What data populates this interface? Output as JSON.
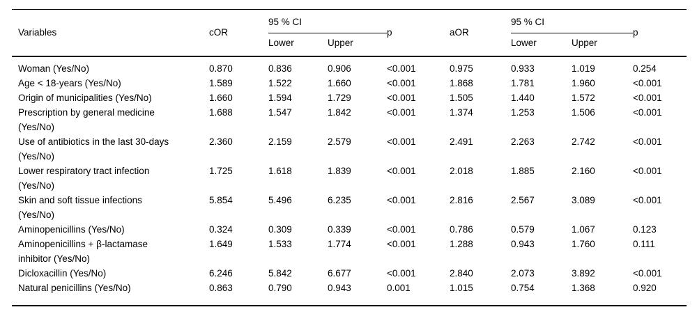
{
  "table": {
    "headers": {
      "variables": "Variables",
      "cor": "cOR",
      "ci": "95 % CI",
      "lower": "Lower",
      "upper": "Upper",
      "p": "p",
      "aor": "aOR"
    },
    "rows": [
      {
        "variable": "Woman (Yes/No)",
        "cor": "0.870",
        "ci1_lower": "0.836",
        "ci1_upper": "0.906",
        "p1": "<0.001",
        "aor": "0.975",
        "ci2_lower": "0.933",
        "ci2_upper": "1.019",
        "p2": "0.254"
      },
      {
        "variable": "Age < 18-years (Yes/No)",
        "cor": "1.589",
        "ci1_lower": "1.522",
        "ci1_upper": "1.660",
        "p1": "<0.001",
        "aor": "1.868",
        "ci2_lower": "1.781",
        "ci2_upper": "1.960",
        "p2": "<0.001"
      },
      {
        "variable": "Origin of municipalities (Yes/No)",
        "cor": "1.660",
        "ci1_lower": "1.594",
        "ci1_upper": "1.729",
        "p1": "<0.001",
        "aor": "1.505",
        "ci2_lower": "1.440",
        "ci2_upper": "1.572",
        "p2": "<0.001"
      },
      {
        "variable": "Prescription by general medicine (Yes/No)",
        "cor": "1.688",
        "ci1_lower": "1.547",
        "ci1_upper": "1.842",
        "p1": "<0.001",
        "aor": "1.374",
        "ci2_lower": "1.253",
        "ci2_upper": "1.506",
        "p2": "<0.001"
      },
      {
        "variable": "Use of antibiotics in the last 30-days (Yes/No)",
        "cor": "2.360",
        "ci1_lower": "2.159",
        "ci1_upper": "2.579",
        "p1": "<0.001",
        "aor": "2.491",
        "ci2_lower": "2.263",
        "ci2_upper": "2.742",
        "p2": "<0.001"
      },
      {
        "variable": "Lower respiratory tract infection (Yes/No)",
        "cor": "1.725",
        "ci1_lower": "1.618",
        "ci1_upper": "1.839",
        "p1": "<0.001",
        "aor": "2.018",
        "ci2_lower": "1.885",
        "ci2_upper": "2.160",
        "p2": "<0.001"
      },
      {
        "variable": "Skin and soft tissue infections (Yes/No)",
        "cor": "5.854",
        "ci1_lower": "5.496",
        "ci1_upper": "6.235",
        "p1": "<0.001",
        "aor": "2.816",
        "ci2_lower": "2.567",
        "ci2_upper": "3.089",
        "p2": "<0.001"
      },
      {
        "variable": "Aminopenicillins (Yes/No)",
        "cor": "0.324",
        "ci1_lower": "0.309",
        "ci1_upper": "0.339",
        "p1": "<0.001",
        "aor": "0.786",
        "ci2_lower": "0.579",
        "ci2_upper": "1.067",
        "p2": "0.123"
      },
      {
        "variable": "Aminopenicillins + β-lactamase inhibitor (Yes/No)",
        "cor": "1.649",
        "ci1_lower": "1.533",
        "ci1_upper": "1.774",
        "p1": "<0.001",
        "aor": "1.288",
        "ci2_lower": "0.943",
        "ci2_upper": "1.760",
        "p2": "0.111"
      },
      {
        "variable": "Dicloxacillin (Yes/No)",
        "cor": "6.246",
        "ci1_lower": "5.842",
        "ci1_upper": "6.677",
        "p1": "<0.001",
        "aor": "2.840",
        "ci2_lower": "2.073",
        "ci2_upper": "3.892",
        "p2": "<0.001"
      },
      {
        "variable": "Natural penicillins (Yes/No)",
        "cor": "0.863",
        "ci1_lower": "0.790",
        "ci1_upper": "0.943",
        "p1": "0.001",
        "aor": "1.015",
        "ci2_lower": "0.754",
        "ci2_upper": "1.368",
        "p2": "0.920"
      }
    ]
  }
}
